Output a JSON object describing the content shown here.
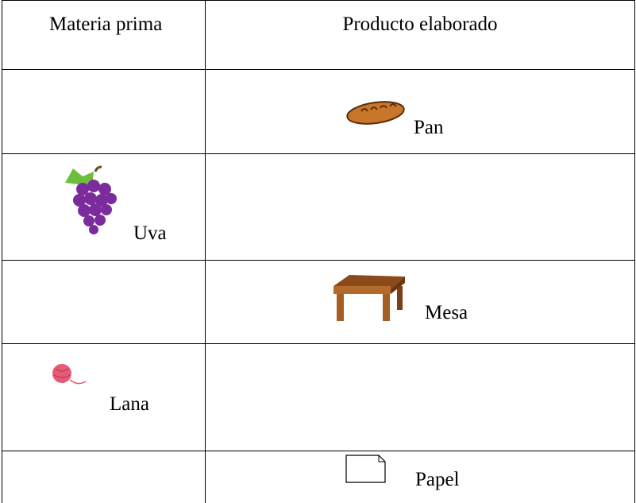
{
  "table": {
    "header": [
      "Materia prima",
      "Producto elaborado"
    ],
    "rows": [
      {
        "product": "Pan"
      },
      {
        "material": "Uva"
      },
      {
        "product": "Mesa"
      },
      {
        "material": "Lana"
      },
      {
        "product": "Papel"
      }
    ]
  }
}
